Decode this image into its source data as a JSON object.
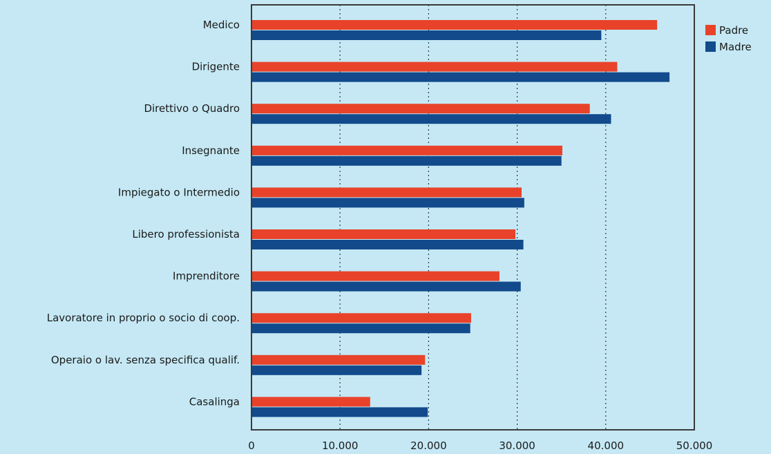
{
  "chart_data": {
    "type": "bar",
    "orientation": "horizontal",
    "categories": [
      "Medico",
      "Dirigente",
      "Direttivo o Quadro",
      "Insegnante",
      "Impiegato o Intermedio",
      "Libero professionista",
      "Imprenditore",
      "Lavoratore in proprio o socio di coop.",
      "Operaio o lav. senza specifica qualif.",
      "Casalinga"
    ],
    "series": [
      {
        "name": "Padre",
        "color": "#e8432a",
        "values": [
          45800,
          41300,
          38200,
          35100,
          30500,
          29800,
          28000,
          24800,
          19600,
          13400
        ]
      },
      {
        "name": "Madre",
        "color": "#124a8c",
        "values": [
          39500,
          47200,
          40600,
          35000,
          30800,
          30700,
          30400,
          24700,
          19200,
          19900
        ]
      }
    ],
    "xlim": [
      0,
      50000
    ],
    "xticks": [
      0,
      10000,
      20000,
      30000,
      40000,
      50000
    ],
    "xtick_labels": [
      "0",
      "10.000",
      "20.000",
      "30.000",
      "40.000",
      "50.000"
    ],
    "grid": "vertical-dotted",
    "legend": "top-right",
    "title": "",
    "xlabel": "",
    "ylabel": ""
  }
}
